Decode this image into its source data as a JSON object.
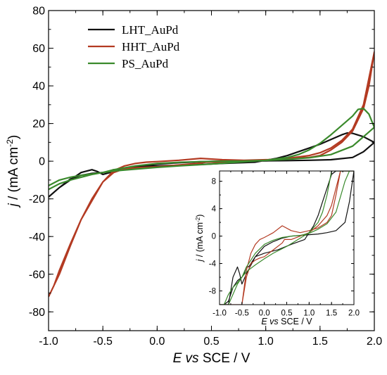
{
  "chart_data": [
    {
      "type": "line",
      "xlabel_parts": [
        "E",
        " vs",
        " SCE / V"
      ],
      "ylabel_parts": [
        "j",
        " / (mA cm",
        "-2",
        ")"
      ],
      "xlim": [
        -1.0,
        2.0
      ],
      "ylim": [
        -90,
        80
      ],
      "xticks": [
        -1.0,
        -0.5,
        0.0,
        0.5,
        1.0,
        1.5,
        2.0
      ],
      "xtick_labels": [
        "-1.0",
        "-0.5",
        "0.0",
        "0.5",
        "1.0",
        "1.5",
        "2.0"
      ],
      "yticks": [
        -80,
        -60,
        -40,
        -20,
        0,
        20,
        40,
        60,
        80
      ],
      "ytick_labels": [
        "-80",
        "-60",
        "-40",
        "-20",
        "0",
        "20",
        "40",
        "60",
        "80"
      ],
      "grid": false,
      "legend_position": "top-left",
      "series": [
        {
          "name": "LHT_AuPd",
          "color": "#111111",
          "x": [
            -1.0,
            -0.9,
            -0.8,
            -0.7,
            -0.6,
            -0.5,
            -0.45,
            -0.4,
            -0.35,
            -0.3,
            -0.2,
            0.0,
            0.3,
            0.6,
            0.9,
            1.0,
            1.1,
            1.2,
            1.3,
            1.4,
            1.5,
            1.6,
            1.7,
            1.75,
            1.8,
            1.9,
            2.0,
            1.9,
            1.8,
            1.6,
            1.4,
            1.2,
            1.0,
            0.8,
            0.6,
            0.4,
            0.2,
            0.0,
            -0.2,
            -0.4,
            -0.5,
            -0.55,
            -0.6,
            -0.7,
            -0.8,
            -0.9,
            -1.0
          ],
          "y": [
            -19,
            -14,
            -9.5,
            -7.5,
            -6.5,
            -6,
            -5.5,
            -4.5,
            -4.5,
            -4,
            -3,
            -2.5,
            -2,
            -1.2,
            -0.5,
            0.5,
            1.5,
            3,
            5,
            7,
            9,
            11.5,
            14,
            15,
            14.8,
            13,
            10,
            5,
            2,
            0.8,
            0.5,
            0.3,
            0.2,
            0.1,
            0,
            -0.3,
            -0.8,
            -1.5,
            -3,
            -5.5,
            -7,
            -5.5,
            -4.5,
            -6,
            -10,
            -14,
            -19
          ]
        },
        {
          "name": "HHT_AuPd",
          "color": "#b33a22",
          "x": [
            -1.0,
            -0.95,
            -0.9,
            -0.8,
            -0.7,
            -0.6,
            -0.5,
            -0.4,
            -0.3,
            -0.2,
            -0.1,
            0.0,
            0.2,
            0.4,
            0.45,
            0.5,
            0.6,
            0.8,
            1.0,
            1.2,
            1.4,
            1.5,
            1.6,
            1.7,
            1.8,
            1.9,
            2.0,
            1.95,
            1.9,
            1.8,
            1.7,
            1.6,
            1.5,
            1.4,
            1.2,
            1.0,
            0.8,
            0.6,
            0.4,
            0.2,
            0.0,
            -0.1,
            -0.2,
            -0.3,
            -0.4,
            -0.5,
            -0.6,
            -0.7,
            -0.8,
            -0.9,
            -1.0
          ],
          "y": [
            -72,
            -66,
            -58,
            -44,
            -31,
            -20,
            -11,
            -6,
            -4,
            -3.5,
            -3.2,
            -3.0,
            -2,
            -1,
            -0.5,
            -0.5,
            -0.5,
            0,
            0.5,
            1.5,
            3,
            4.5,
            7,
            11,
            17,
            30,
            58,
            40,
            28,
            16,
            10,
            6,
            3,
            2,
            1.2,
            0.8,
            0.5,
            0.8,
            1.5,
            0.5,
            -0.2,
            -0.5,
            -1.2,
            -2.5,
            -5,
            -11,
            -21,
            -31,
            -45,
            -60,
            -72
          ]
        },
        {
          "name": "PS_AuPd",
          "color": "#3a8a2c",
          "x": [
            -1.0,
            -0.9,
            -0.8,
            -0.7,
            -0.6,
            -0.5,
            -0.4,
            -0.2,
            0.0,
            0.2,
            0.5,
            0.8,
            1.0,
            1.2,
            1.3,
            1.4,
            1.5,
            1.6,
            1.7,
            1.8,
            1.85,
            1.9,
            1.95,
            2.0,
            1.9,
            1.8,
            1.6,
            1.4,
            1.2,
            1.0,
            0.8,
            0.6,
            0.4,
            0.2,
            0.0,
            -0.2,
            -0.4,
            -0.5,
            -0.6,
            -0.7,
            -0.8,
            -0.9,
            -1.0
          ],
          "y": [
            -13,
            -10,
            -8.5,
            -7.5,
            -6.8,
            -6,
            -5.2,
            -4.2,
            -3.3,
            -2.5,
            -1.5,
            -0.3,
            0.5,
            2,
            3.5,
            6,
            9.5,
            14,
            19,
            24,
            27.5,
            28,
            25,
            18,
            13,
            8,
            3.5,
            1.8,
            1,
            0.4,
            0.1,
            0,
            -0.2,
            -0.6,
            -1.2,
            -2.5,
            -4.5,
            -6,
            -7,
            -8.5,
            -10,
            -12,
            -15
          ]
        }
      ]
    },
    {
      "type": "line",
      "role": "inset",
      "xlabel_parts": [
        "E",
        " vs",
        " SCE / V"
      ],
      "ylabel_parts": [
        "j",
        " / (mA cm",
        "-2",
        ")"
      ],
      "xlim": [
        -1.0,
        2.0
      ],
      "ylim": [
        -10,
        9.5
      ],
      "xticks": [
        -1.0,
        -0.5,
        0.0,
        0.5,
        1.0,
        1.5,
        2.0
      ],
      "xtick_labels": [
        "-1.0",
        "-0.5",
        "0.0",
        "0.5",
        "1.0",
        "1.5",
        "2.0"
      ],
      "yticks": [
        -8,
        -4,
        0,
        4,
        8
      ],
      "ytick_labels": [
        "-8",
        "-4",
        "0",
        "4",
        "8"
      ],
      "grid": false
    }
  ]
}
